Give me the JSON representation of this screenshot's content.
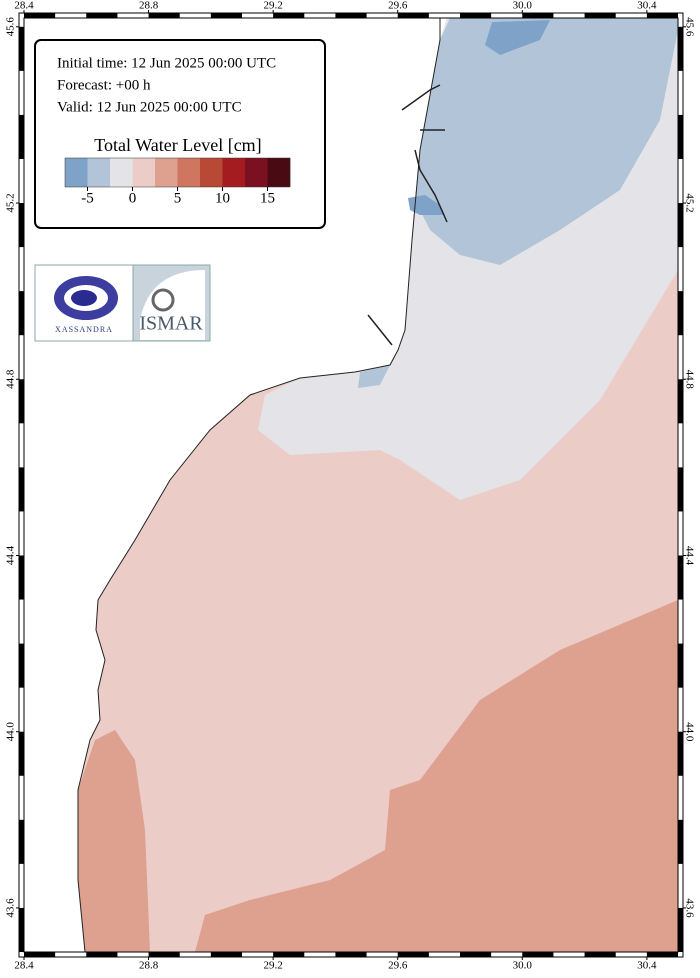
{
  "header": {
    "lines": [
      "Initial time: 12 Jun 2025 00:00 UTC",
      "Forecast: +00 h",
      "Valid: 12 Jun 2025 00:00 UTC"
    ]
  },
  "colorbar": {
    "title": "Total Water Level [cm]",
    "range": [
      -7.5,
      17.5
    ],
    "colors": [
      "#7fa3c8",
      "#b2c5d8",
      "#e4e4e8",
      "#ecccc6",
      "#dea08f",
      "#cf7560",
      "#b84a35",
      "#a41c20",
      "#7a1020",
      "#4a0a14"
    ],
    "ticks": [
      -5,
      0,
      5,
      10,
      15
    ]
  },
  "logos": {
    "left": "XASSANDRA",
    "right": "ISMAR"
  },
  "map": {
    "lon_range": [
      28.4,
      30.5
    ],
    "lat_range": [
      43.5,
      45.62
    ],
    "lon_ticks": [
      28.4,
      28.8,
      29.2,
      29.6,
      {
        "value": 30,
        "label": "30.0"
      },
      30.4
    ],
    "lat_ticks": [
      43.6,
      {
        "value": 44,
        "label": "44.0"
      },
      44.4,
      44.8,
      45.2,
      45.6
    ]
  }
}
